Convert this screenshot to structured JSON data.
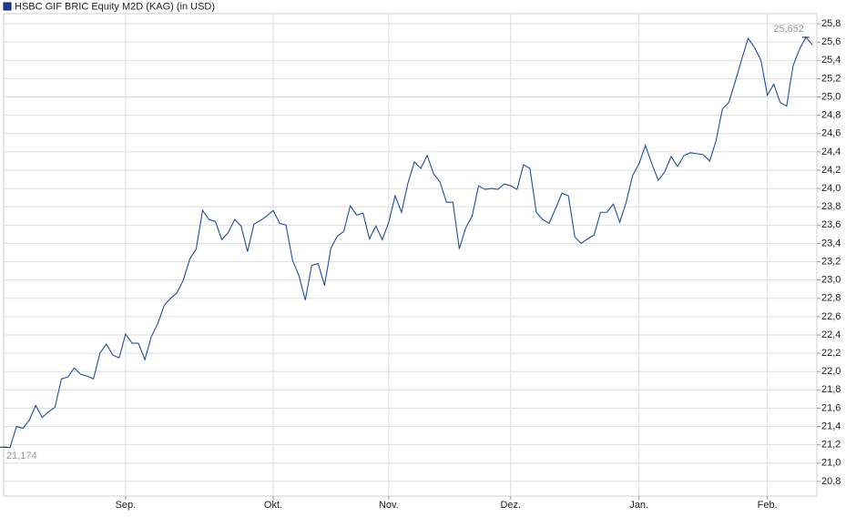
{
  "chart_data": {
    "type": "line",
    "title": "HSBC GIF BRIC Equity M2D (KAG) (in USD)",
    "color": "#1d4f9e",
    "grid": true,
    "ylim": [
      20.64,
      25.91
    ],
    "yticks": [
      {
        "value": 20.8,
        "label": "20,8"
      },
      {
        "value": 21.0,
        "label": "21,0"
      },
      {
        "value": 21.2,
        "label": "21,2"
      },
      {
        "value": 21.4,
        "label": "21,4"
      },
      {
        "value": 21.6,
        "label": "21,6"
      },
      {
        "value": 21.8,
        "label": "21,8"
      },
      {
        "value": 22.0,
        "label": "22,0"
      },
      {
        "value": 22.2,
        "label": "22,2"
      },
      {
        "value": 22.4,
        "label": "22,4"
      },
      {
        "value": 22.6,
        "label": "22,6"
      },
      {
        "value": 22.8,
        "label": "22,8"
      },
      {
        "value": 23.0,
        "label": "23,0"
      },
      {
        "value": 23.2,
        "label": "23,2"
      },
      {
        "value": 23.4,
        "label": "23,4"
      },
      {
        "value": 23.6,
        "label": "23,6"
      },
      {
        "value": 23.8,
        "label": "23,8"
      },
      {
        "value": 24.0,
        "label": "24,0"
      },
      {
        "value": 24.2,
        "label": "24,2"
      },
      {
        "value": 24.4,
        "label": "24,4"
      },
      {
        "value": 24.6,
        "label": "24,6"
      },
      {
        "value": 24.8,
        "label": "24,8"
      },
      {
        "value": 25.0,
        "label": "25,0"
      },
      {
        "value": 25.2,
        "label": "25,2"
      },
      {
        "value": 25.4,
        "label": "25,4"
      },
      {
        "value": 25.6,
        "label": "25,6"
      },
      {
        "value": 25.8,
        "label": "25,8"
      }
    ],
    "categories": [
      null,
      null,
      null,
      null,
      null,
      null,
      null,
      null,
      null,
      null,
      null,
      null,
      null,
      null,
      null,
      null,
      null,
      null,
      null,
      "Sep.",
      null,
      null,
      null,
      null,
      null,
      null,
      null,
      null,
      null,
      null,
      null,
      null,
      null,
      null,
      null,
      null,
      null,
      null,
      null,
      null,
      null,
      null,
      "Okt.",
      null,
      null,
      null,
      null,
      null,
      null,
      null,
      null,
      null,
      null,
      null,
      null,
      null,
      null,
      null,
      null,
      null,
      "Nov.",
      null,
      null,
      null,
      null,
      null,
      null,
      null,
      null,
      null,
      null,
      null,
      null,
      null,
      null,
      null,
      null,
      null,
      null,
      "Dez.",
      null,
      null,
      null,
      null,
      null,
      null,
      null,
      null,
      null,
      null,
      null,
      null,
      null,
      null,
      null,
      null,
      null,
      null,
      null,
      "Jan.",
      null,
      null,
      null,
      null,
      null,
      null,
      null,
      null,
      null,
      null,
      null,
      null,
      null,
      null,
      null,
      null,
      null,
      null,
      null,
      "Feb.",
      null,
      null,
      null,
      null,
      null,
      null,
      null
    ],
    "values": [
      21.174,
      21.17,
      21.4,
      21.38,
      21.47,
      21.63,
      21.5,
      21.56,
      21.61,
      21.92,
      21.94,
      22.04,
      21.97,
      21.95,
      21.92,
      22.2,
      22.3,
      22.18,
      22.15,
      22.41,
      22.31,
      22.31,
      22.13,
      22.38,
      22.52,
      22.72,
      22.8,
      22.86,
      23.0,
      23.23,
      23.34,
      23.76,
      23.66,
      23.64,
      23.44,
      23.52,
      23.66,
      23.59,
      23.31,
      23.61,
      23.65,
      23.7,
      23.76,
      23.62,
      23.6,
      23.22,
      23.05,
      22.78,
      23.16,
      23.18,
      22.94,
      23.35,
      23.48,
      23.53,
      23.81,
      23.71,
      23.73,
      23.45,
      23.59,
      23.44,
      23.63,
      23.92,
      23.74,
      24.06,
      24.29,
      24.22,
      24.36,
      24.16,
      24.07,
      23.85,
      23.85,
      23.34,
      23.57,
      23.7,
      24.03,
      23.99,
      24.0,
      23.99,
      24.05,
      24.03,
      23.99,
      24.26,
      24.22,
      23.74,
      23.66,
      23.62,
      23.78,
      23.95,
      23.92,
      23.47,
      23.4,
      23.45,
      23.49,
      23.74,
      23.74,
      23.83,
      23.63,
      23.85,
      24.14,
      24.27,
      24.47,
      24.27,
      24.09,
      24.18,
      24.35,
      24.24,
      24.36,
      24.39,
      24.38,
      24.37,
      24.3,
      24.52,
      24.87,
      24.94,
      25.17,
      25.41,
      25.64,
      25.54,
      25.4,
      25.02,
      25.14,
      24.94,
      24.9,
      25.34,
      25.52,
      25.652,
      25.57
    ],
    "value_labels": [
      "21,174",
      null,
      null,
      null,
      null,
      null,
      null,
      null,
      null,
      null,
      null,
      null,
      null,
      null,
      null,
      null,
      null,
      null,
      null,
      null,
      null,
      null,
      null,
      null,
      null,
      null,
      null,
      null,
      null,
      null,
      null,
      null,
      null,
      null,
      null,
      null,
      null,
      null,
      null,
      null,
      null,
      null,
      null,
      null,
      null,
      null,
      null,
      null,
      null,
      null,
      null,
      null,
      null,
      null,
      null,
      null,
      null,
      null,
      null,
      null,
      null,
      null,
      null,
      null,
      null,
      null,
      null,
      null,
      null,
      null,
      null,
      null,
      null,
      null,
      null,
      null,
      null,
      null,
      null,
      null,
      null,
      null,
      null,
      null,
      null,
      null,
      null,
      null,
      null,
      null,
      null,
      null,
      null,
      null,
      null,
      null,
      null,
      null,
      null,
      null,
      null,
      null,
      null,
      null,
      null,
      null,
      null,
      null,
      null,
      null,
      null,
      null,
      null,
      null,
      null,
      null,
      null,
      null,
      null,
      null,
      null,
      null,
      null,
      null,
      null,
      "25,652",
      null
    ]
  }
}
